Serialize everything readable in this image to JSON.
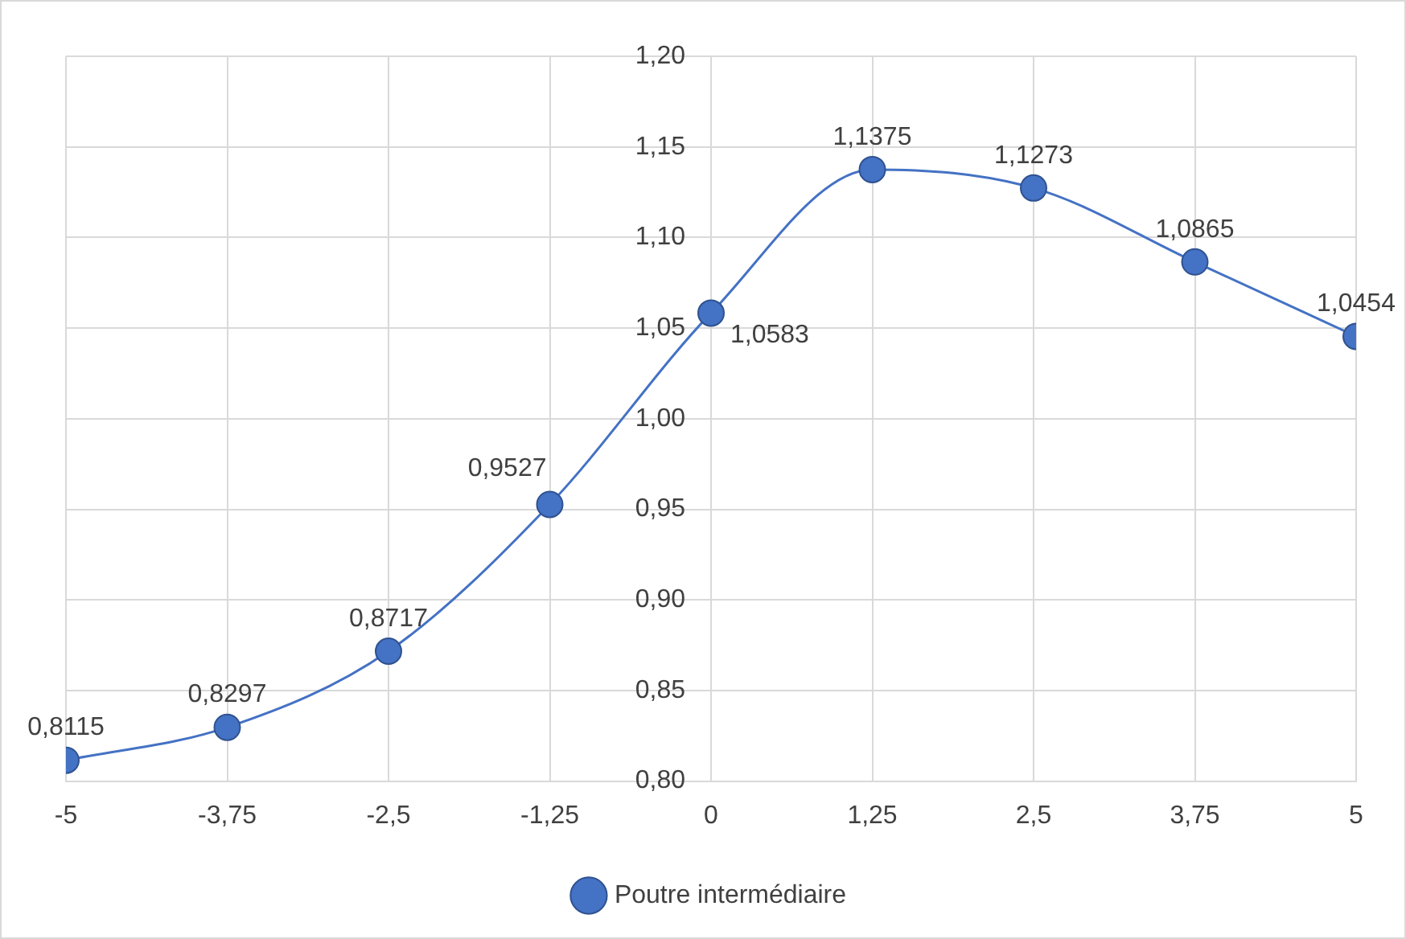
{
  "chart_data": {
    "type": "line",
    "x": [
      -5,
      -3.75,
      -2.5,
      -1.25,
      0,
      1.25,
      2.5,
      3.75,
      5
    ],
    "series": [
      {
        "name": "Poutre intermédiaire",
        "color": "#4472c4",
        "values": [
          0.8115,
          0.8297,
          0.8717,
          0.9527,
          1.0583,
          1.1375,
          1.1273,
          1.0865,
          1.0454
        ],
        "value_labels": [
          "0,8115",
          "0,8297",
          "0,8717",
          "0,9527",
          "1,0583",
          "1,1375",
          "1,1273",
          "1,0865",
          "1,0454"
        ]
      }
    ],
    "xlim": [
      -5,
      5
    ],
    "xticks": [
      {
        "value": -5,
        "label": "-5"
      },
      {
        "value": -3.75,
        "label": "-3,75"
      },
      {
        "value": -2.5,
        "label": "-2,5"
      },
      {
        "value": -1.25,
        "label": "-1,25"
      },
      {
        "value": 0,
        "label": "0"
      },
      {
        "value": 1.25,
        "label": "1,25"
      },
      {
        "value": 2.5,
        "label": "2,5"
      },
      {
        "value": 3.75,
        "label": "3,75"
      },
      {
        "value": 5,
        "label": "5"
      }
    ],
    "ylim": [
      0.8,
      1.2
    ],
    "yticks": [
      {
        "value": 0.8,
        "label": "0,80"
      },
      {
        "value": 0.85,
        "label": "0,85"
      },
      {
        "value": 0.9,
        "label": "0,90"
      },
      {
        "value": 0.95,
        "label": "0,95"
      },
      {
        "value": 1,
        "label": "1,00"
      },
      {
        "value": 1.05,
        "label": "1,05"
      },
      {
        "value": 1.1,
        "label": "1,10"
      },
      {
        "value": 1.15,
        "label": "1,15"
      },
      {
        "value": 1.2,
        "label": "1,20"
      }
    ],
    "grid": true,
    "legend": "bottom",
    "marker": "circle",
    "line_style": "solid"
  }
}
